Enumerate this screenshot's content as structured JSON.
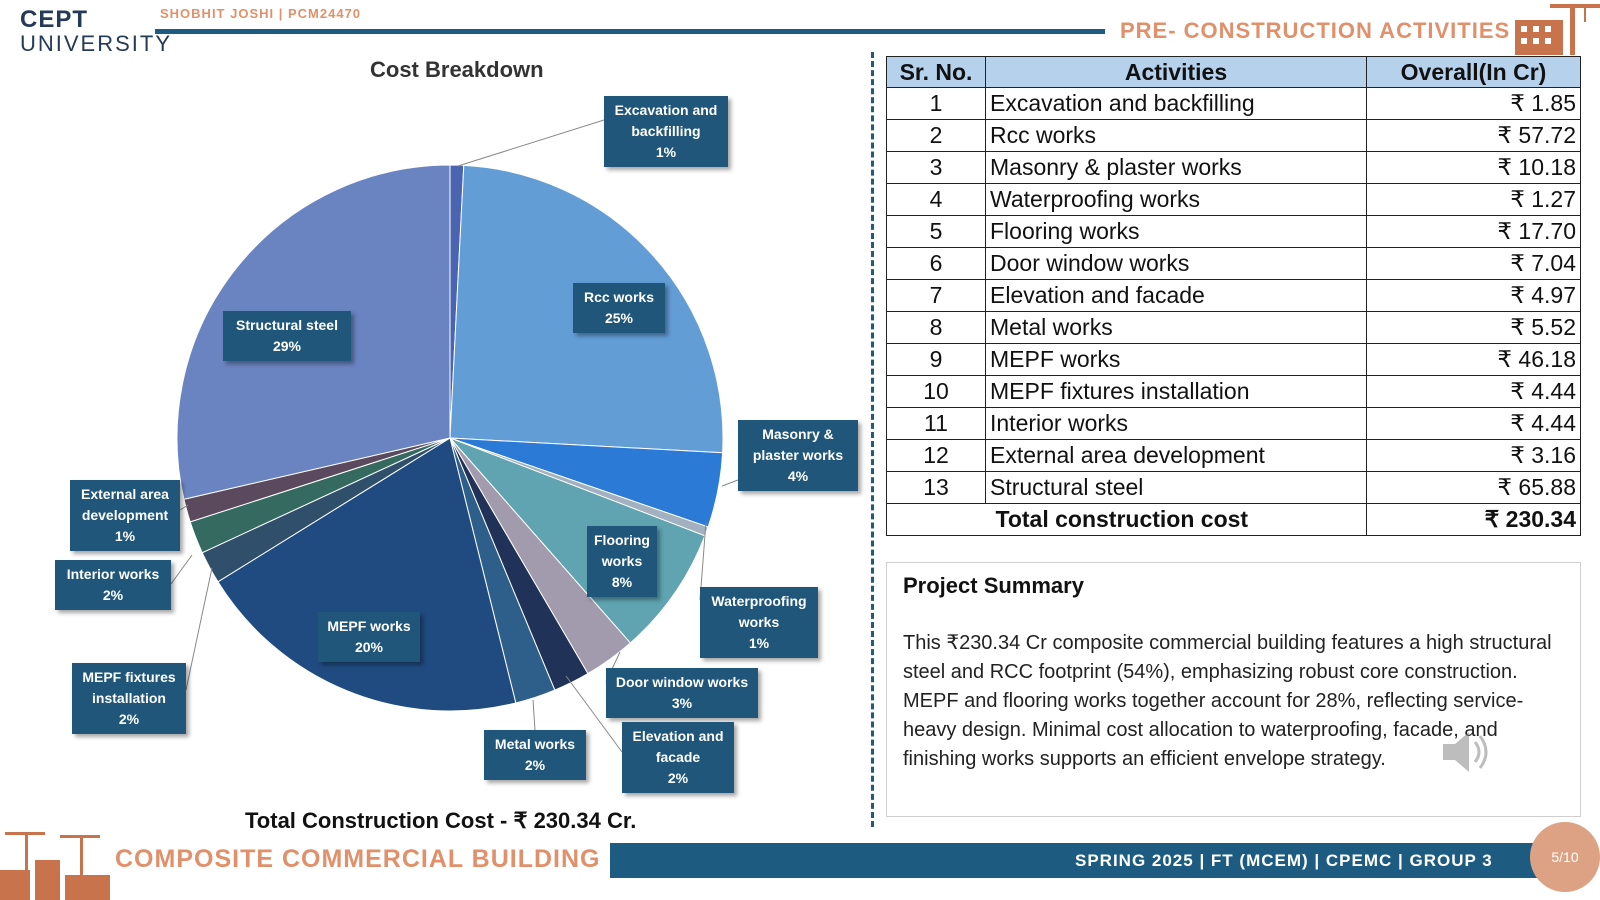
{
  "header": {
    "logo_line1": "CEPT",
    "logo_line2": "UNIVERSITY",
    "student": "SHOBHIT JOSHI | PCM24470",
    "section_title": "PRE- CONSTRUCTION ACTIVITIES"
  },
  "colors": {
    "primary": "#1d5c80",
    "accent": "#e0906a",
    "label_box": "#1f5679",
    "table_header": "#b5d1ec"
  },
  "chart_data": {
    "type": "pie",
    "title": "Cost Breakdown",
    "caption": "Total Construction Cost - ₹ 230.34 Cr.",
    "slices": [
      {
        "label_lines": [
          "Excavation and",
          "backfilling",
          "1%"
        ],
        "value": 1.85,
        "color": "#4a64b2"
      },
      {
        "label_lines": [
          "Rcc works",
          "25%"
        ],
        "value": 57.72,
        "color": "#639dd6"
      },
      {
        "label_lines": [
          "Masonry &",
          "plaster works",
          "4%"
        ],
        "value": 10.18,
        "color": "#2b7ad6"
      },
      {
        "label_lines": [
          "Waterproofing",
          "works",
          "1%"
        ],
        "value": 1.27,
        "color": "#a3b0c0"
      },
      {
        "label_lines": [
          "Flooring",
          "works",
          "8%"
        ],
        "value": 17.7,
        "color": "#5fa4b0"
      },
      {
        "label_lines": [
          "Door window works",
          "3%"
        ],
        "value": 7.04,
        "color": "#a29bad"
      },
      {
        "label_lines": [
          "Elevation and",
          "facade",
          "2%"
        ],
        "value": 4.97,
        "color": "#203257"
      },
      {
        "label_lines": [
          "Metal works",
          "2%"
        ],
        "value": 5.52,
        "color": "#2d5f8a"
      },
      {
        "label_lines": [
          "MEPF works",
          "20%"
        ],
        "value": 46.18,
        "color": "#1f4b80"
      },
      {
        "label_lines": [
          "MEPF fixtures",
          "installation",
          "2%"
        ],
        "value": 4.44,
        "color": "#2f4f6a"
      },
      {
        "label_lines": [
          "Interior works",
          "2%"
        ],
        "value": 4.44,
        "color": "#356a61"
      },
      {
        "label_lines": [
          "External area",
          "development",
          "1%"
        ],
        "value": 3.16,
        "color": "#5b4a5e"
      },
      {
        "label_lines": [
          "Structural steel",
          "29%"
        ],
        "value": 65.88,
        "color": "#6a84c2"
      }
    ]
  },
  "table": {
    "headers": [
      "Sr. No.",
      "Activities",
      "Overall(In Cr)"
    ],
    "rows": [
      [
        "1",
        "Excavation and backfilling",
        "₹ 1.85"
      ],
      [
        "2",
        "Rcc works",
        "₹ 57.72"
      ],
      [
        "3",
        "Masonry & plaster works",
        "₹ 10.18"
      ],
      [
        "4",
        "Waterproofing works",
        "₹ 1.27"
      ],
      [
        "5",
        "Flooring works",
        "₹ 17.70"
      ],
      [
        "6",
        "Door window works",
        "₹ 7.04"
      ],
      [
        "7",
        "Elevation and facade",
        "₹ 4.97"
      ],
      [
        "8",
        "Metal works",
        "₹ 5.52"
      ],
      [
        "9",
        "MEPF works",
        "₹ 46.18"
      ],
      [
        "10",
        "MEPF fixtures installation",
        "₹ 4.44"
      ],
      [
        "11",
        "Interior works",
        "₹ 4.44"
      ],
      [
        "12",
        "External area development",
        "₹ 3.16"
      ],
      [
        "13",
        "Structural steel",
        "₹ 65.88"
      ]
    ],
    "total_label": "Total construction cost",
    "total_value": "₹ 230.34"
  },
  "summary": {
    "title": "Project Summary",
    "text": "This ₹230.34 Cr composite commercial building features a high structural steel and RCC footprint (54%), emphasizing robust core construction. MEPF and flooring works together account for 28%, reflecting service-heavy design. Minimal cost allocation to waterproofing, facade, and finishing works supports an efficient envelope strategy."
  },
  "footer": {
    "title": "COMPOSITE COMMERCIAL BUILDING",
    "info": "SPRING 2025 | FT (MCEM) | CPEMC | GROUP 3",
    "page": "5/10"
  }
}
